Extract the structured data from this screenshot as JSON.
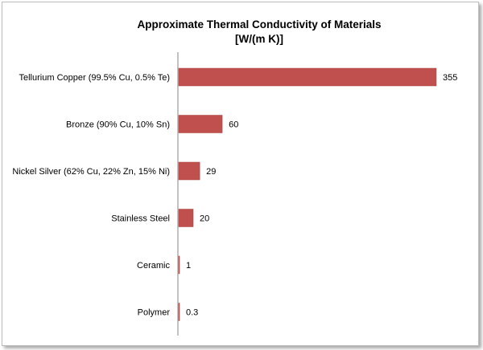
{
  "chart_data": {
    "type": "bar",
    "orientation": "horizontal",
    "title": "Approximate Thermal Conductivity of Materials",
    "subtitle": "[W/(m K)]",
    "categories": [
      "Tellurium Copper (99.5% Cu, 0.5% Te)",
      "Bronze (90% Cu, 10% Sn)",
      "Nickel Silver (62% Cu, 22% Zn, 15% Ni)",
      "Stainless Steel",
      "Ceramic",
      "Polymer"
    ],
    "values": [
      355,
      60,
      29,
      20,
      1,
      0.3
    ],
    "data_labels": [
      "355",
      "60",
      "29",
      "20",
      "1",
      "0.3"
    ],
    "xlim": [
      0,
      355
    ],
    "grid": false,
    "legend": "none",
    "bar_color": "#c0504d"
  }
}
